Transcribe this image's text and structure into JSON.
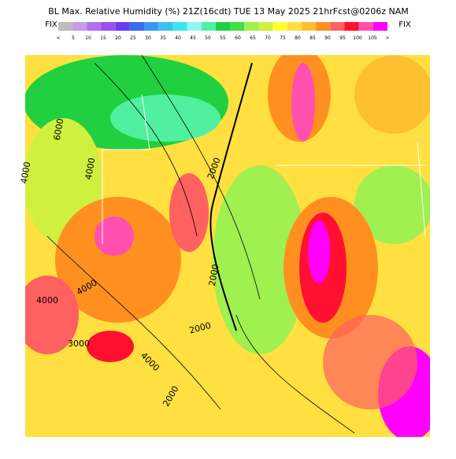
{
  "header": {
    "title": "BL Max. Relative Humidity (%) 21Z(16cdt) TUE 13 May 2025 21hrFcst@0206z NAM"
  },
  "colorbar": {
    "left_label": "FIX",
    "right_label": "FIX",
    "labels": [
      "<",
      "5",
      "10",
      "15",
      "20",
      "25",
      "30",
      "35",
      "40",
      "45",
      "50",
      "55",
      "60",
      "65",
      "70",
      "75",
      "80",
      "85",
      "90",
      "95",
      "100",
      "105",
      ">"
    ],
    "colors": [
      "#bdbdbd",
      "#c89bf0",
      "#b070f0",
      "#9b50f0",
      "#6a3cf0",
      "#3c6cf0",
      "#3c96f0",
      "#3cc0f0",
      "#3ce6f0",
      "#90f5f5",
      "#50f0a0",
      "#20d040",
      "#40e040",
      "#a0f050",
      "#d0f040",
      "#ffff30",
      "#ffe040",
      "#ffc030",
      "#ff9020",
      "#ff6060",
      "#ff1030",
      "#ff50b0",
      "#ff00ff"
    ]
  },
  "contour_labels": [
    "6000",
    "4000",
    "4000",
    "2000",
    "2000",
    "4000",
    "3000",
    "4000",
    "2000",
    "4000",
    "2000"
  ]
}
